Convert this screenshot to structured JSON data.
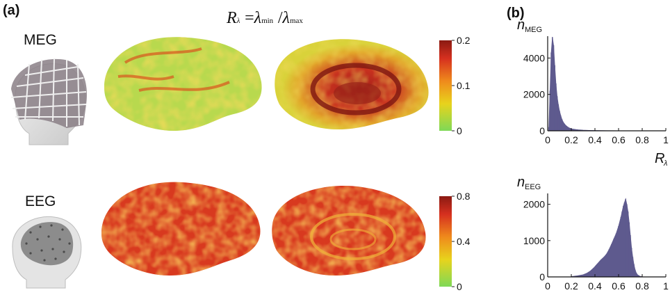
{
  "figure": {
    "panel_a_label": "(a)",
    "panel_b_label": "(b)",
    "title_lhs": "R",
    "title_lhs_sub": "λ",
    "title_eq": "=",
    "title_num": "λ",
    "title_num_sub": "min",
    "title_slash": "/",
    "title_den": "λ",
    "title_den_sub": "max",
    "rows": [
      {
        "modality": "MEG"
      },
      {
        "modality": "EEG"
      }
    ],
    "colors": {
      "low": "#7ed957",
      "mid": "#e8d31c",
      "high_orange": "#ef8a1c",
      "high_red": "#d6301f",
      "max": "#8b1a12",
      "hist_fill": "#5e5a8e"
    }
  },
  "chart_data": [
    {
      "type": "heatmap",
      "name": "MEG colorbar",
      "ylim": [
        0,
        0.2
      ],
      "tick_labels": [
        "0.2",
        "0.1",
        "0"
      ],
      "ticks": [
        0.2,
        0.1,
        0
      ]
    },
    {
      "type": "heatmap",
      "name": "EEG colorbar",
      "ylim": [
        0,
        0.8
      ],
      "tick_labels": [
        "0.8",
        "0.4",
        "0"
      ],
      "ticks": [
        0.8,
        0.4,
        0
      ]
    },
    {
      "type": "bar",
      "name": "MEG histogram",
      "ylabel": "n",
      "ylabel_sub": "MEG",
      "xlabel": "R",
      "xlabel_sub": "λ",
      "xlim": [
        0,
        1
      ],
      "ylim": [
        0,
        5200
      ],
      "xticks": [
        0,
        0.2,
        0.4,
        0.6,
        0.8,
        1
      ],
      "xtick_labels": [
        "0",
        "0.2",
        "0.4",
        "0.6",
        "0.8",
        "1"
      ],
      "yticks": [
        0,
        2000,
        4000
      ],
      "ytick_labels": [
        "0",
        "2000",
        "4000"
      ],
      "x": [
        0.01,
        0.02,
        0.03,
        0.04,
        0.05,
        0.06,
        0.07,
        0.08,
        0.09,
        0.1,
        0.11,
        0.12,
        0.13,
        0.14,
        0.15,
        0.16,
        0.17,
        0.18,
        0.19,
        0.2,
        0.22,
        0.24,
        0.26,
        0.28,
        0.3,
        0.35,
        0.4,
        0.45,
        0.5,
        0.6,
        0.7,
        0.8,
        0.9,
        1.0
      ],
      "values": [
        200,
        2200,
        4300,
        5150,
        4700,
        3600,
        2600,
        1900,
        1450,
        1100,
        850,
        650,
        500,
        400,
        320,
        260,
        210,
        170,
        140,
        110,
        90,
        70,
        55,
        45,
        35,
        25,
        18,
        12,
        8,
        5,
        3,
        2,
        1,
        0
      ]
    },
    {
      "type": "bar",
      "name": "EEG histogram",
      "ylabel": "n",
      "ylabel_sub": "EEG",
      "xlim": [
        0,
        1
      ],
      "ylim": [
        0,
        2300
      ],
      "xticks": [
        0,
        0.2,
        0.4,
        0.6,
        0.8,
        1
      ],
      "xtick_labels": [
        "0",
        "0.2",
        "0.4",
        "0.6",
        "0.8",
        "1"
      ],
      "yticks": [
        0,
        1000,
        2000
      ],
      "ytick_labels": [
        "0",
        "1000",
        "2000"
      ],
      "x": [
        0.2,
        0.25,
        0.3,
        0.33,
        0.36,
        0.39,
        0.42,
        0.45,
        0.48,
        0.5,
        0.52,
        0.54,
        0.56,
        0.58,
        0.6,
        0.62,
        0.63,
        0.64,
        0.65,
        0.66,
        0.67,
        0.68,
        0.69,
        0.7,
        0.71,
        0.72,
        0.73,
        0.74,
        0.75,
        0.76,
        0.78,
        0.8
      ],
      "values": [
        10,
        30,
        60,
        100,
        160,
        250,
        360,
        470,
        560,
        640,
        760,
        900,
        1050,
        1200,
        1400,
        1650,
        1800,
        1950,
        2050,
        2150,
        2000,
        1800,
        1500,
        1150,
        800,
        550,
        350,
        200,
        110,
        60,
        20,
        5
      ]
    }
  ]
}
